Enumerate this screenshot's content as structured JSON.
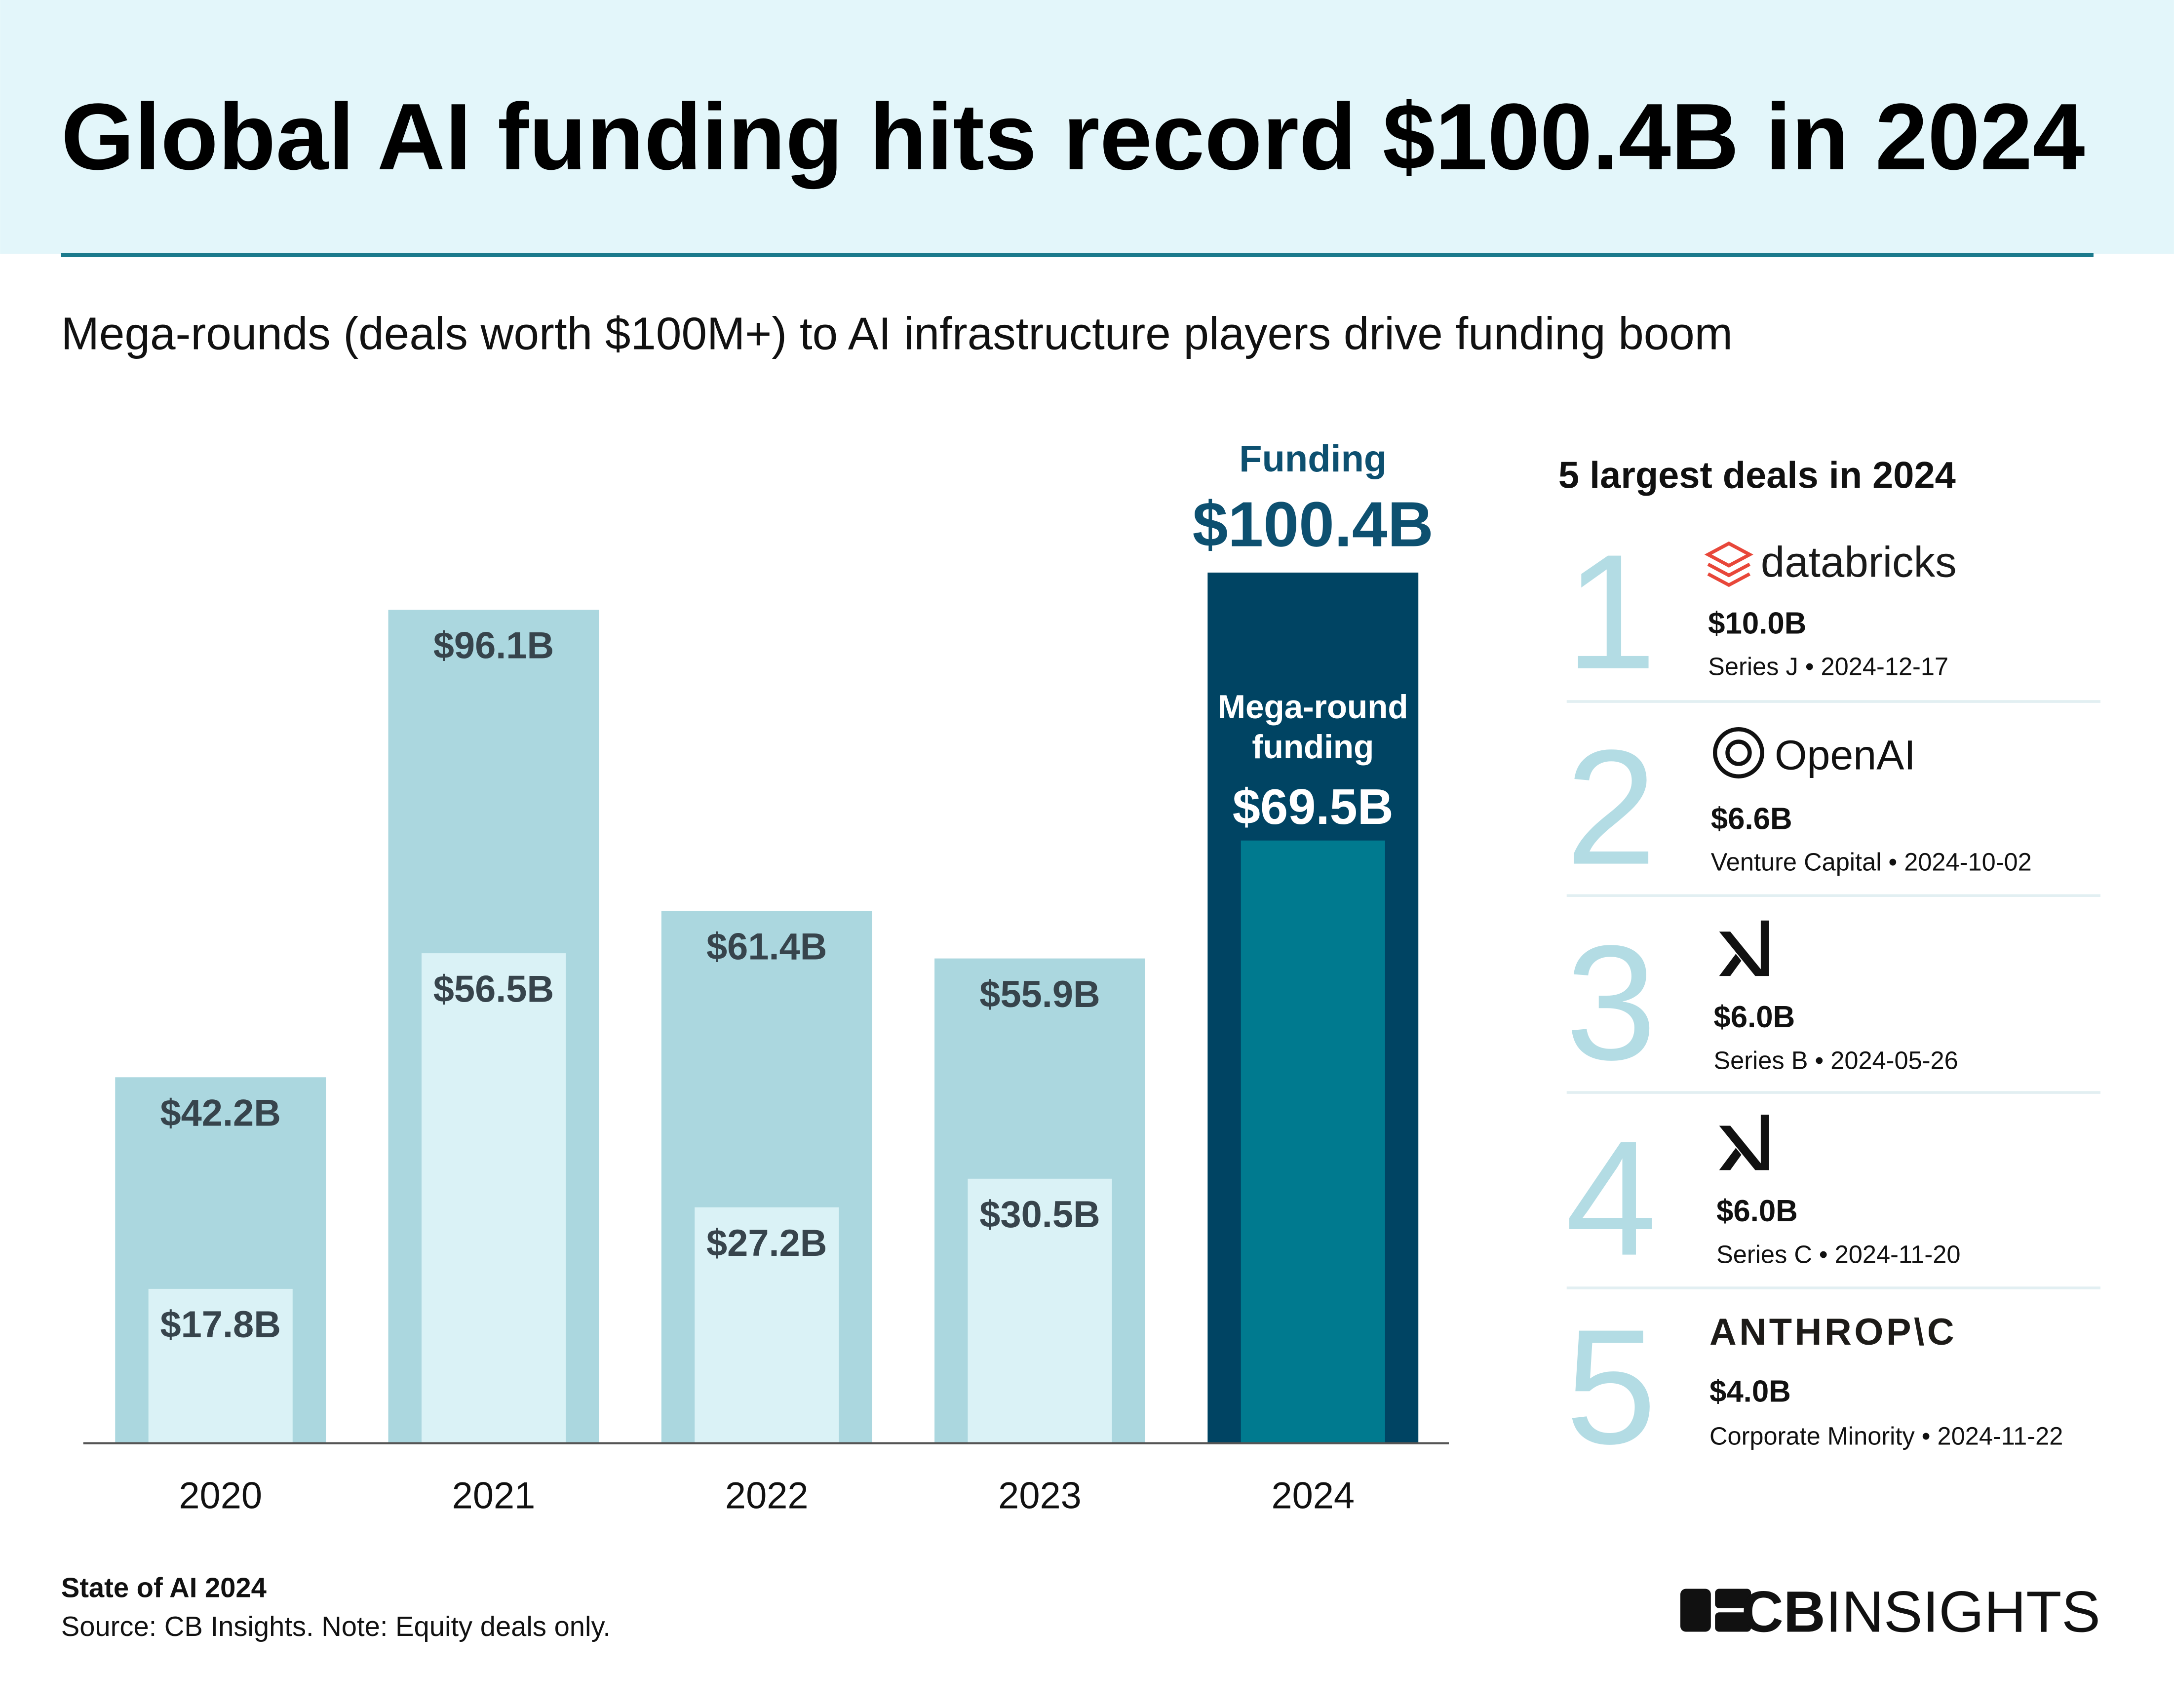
{
  "header": {
    "title": "Global AI funding hits record $100.4B in 2024",
    "subtitle": "Mega-rounds (deals worth $100M+) to AI infrastructure players drive funding boom"
  },
  "chart_data": {
    "type": "bar",
    "categories": [
      "2020",
      "2021",
      "2022",
      "2023",
      "2024"
    ],
    "series": [
      {
        "name": "Funding",
        "colors": [
          "#abd7df",
          "#abd7df",
          "#abd7df",
          "#abd7df",
          "#004463"
        ],
        "values": [
          42.2,
          96.1,
          61.4,
          55.9,
          100.4
        ],
        "value_labels": [
          "$42.2B",
          "$96.1B",
          "$61.4B",
          "$55.9B",
          "$100.4B"
        ]
      },
      {
        "name": "Mega-round funding",
        "colors": [
          "#daf2f6",
          "#daf2f6",
          "#daf2f6",
          "#daf2f6",
          "#007a8f"
        ],
        "values": [
          17.8,
          56.5,
          27.2,
          30.5,
          69.5
        ],
        "value_labels": [
          "$17.8B",
          "$56.5B",
          "$27.2B",
          "$30.5B",
          "$69.5B"
        ]
      }
    ]
  },
  "deals": {
    "title": "5 largest deals in 2024",
    "items": [
      {
        "rank": 1,
        "company": "databricks",
        "amount": "$10.0B",
        "details": "Series J • 2024-12-17"
      },
      {
        "rank": 2,
        "company": "OpenAI",
        "amount": "$6.6B",
        "details": "Venture Capital • 2024-10-02"
      },
      {
        "rank": 3,
        "amount": "$6.0B",
        "details": "Series B • 2024-05-26"
      },
      {
        "rank": 4,
        "amount": "$6.0B",
        "details": "Series C • 2024-11-20"
      },
      {
        "rank": 5,
        "company": "ANTHROP\\C",
        "amount": "$4.0B",
        "details": "Corporate Minority • 2024-11-22"
      }
    ]
  },
  "footer": {
    "title": "State of AI 2024",
    "source": "Source: CB Insights. Note: Equity deals only.",
    "brand_bold": "CB",
    "brand_light": "INSIGHTS"
  }
}
